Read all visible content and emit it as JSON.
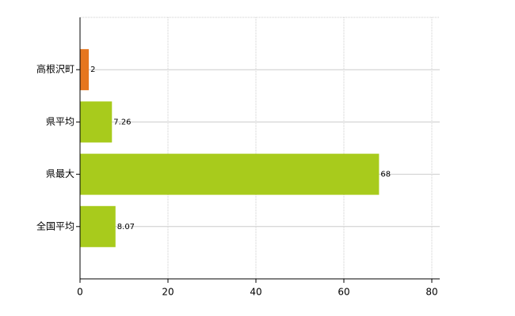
{
  "chart_data": {
    "type": "hbar",
    "categories": [
      "高根沢町",
      "県平均",
      "県最大",
      "全国平均"
    ],
    "values": [
      2,
      7.26,
      68,
      8.07
    ],
    "colors": [
      "#e6761e",
      "#a8cb1c",
      "#a8cb1c",
      "#a8cb1c"
    ],
    "xlim": [
      0,
      80
    ],
    "xticks": [
      0,
      20,
      40,
      60,
      80
    ],
    "grid": true
  }
}
